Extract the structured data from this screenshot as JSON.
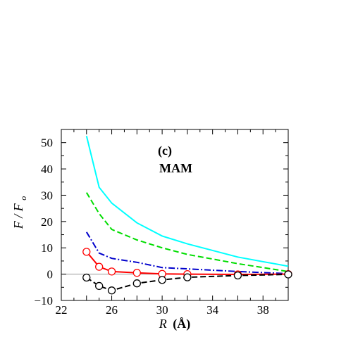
{
  "chart_data": {
    "type": "line",
    "title": "",
    "panel_label": "(c)",
    "model_label": "MAM",
    "xlabel": {
      "symbol": "R",
      "unit": "(Å)"
    },
    "ylabel": {
      "numerator": "F",
      "denominator": "F",
      "subscript": "o"
    },
    "xlim": [
      22,
      40
    ],
    "ylim": [
      -10,
      55
    ],
    "xticks": [
      22,
      26,
      30,
      34,
      38
    ],
    "yticks": [
      -10,
      0,
      10,
      20,
      30,
      40,
      50
    ],
    "xtick_labels": [
      "22",
      "26",
      "30",
      "34",
      "38"
    ],
    "ytick_labels": [
      "−10",
      "0",
      "10",
      "20",
      "30",
      "40",
      "50"
    ],
    "grid": false,
    "legend": "none",
    "zero_line": true,
    "series": [
      {
        "color": "#00ffff",
        "dash": "solid",
        "marker": "none",
        "x": [
          24,
          25,
          26,
          28,
          30,
          32,
          36,
          40
        ],
        "y": [
          52.5,
          33,
          27,
          19.5,
          14.5,
          11.5,
          6.5,
          3
        ]
      },
      {
        "color": "#00dd00",
        "dash": "dashed",
        "marker": "none",
        "x": [
          24,
          25,
          26,
          28,
          30,
          32,
          36,
          40
        ],
        "y": [
          31,
          23,
          17,
          13,
          10,
          7.5,
          4,
          1
        ]
      },
      {
        "color": "#0000cc",
        "dash": "dashdot",
        "marker": "none",
        "x": [
          24,
          25,
          26,
          28,
          30,
          32,
          36,
          40
        ],
        "y": [
          16,
          8,
          6,
          4.5,
          2.5,
          2,
          1,
          0.2
        ]
      },
      {
        "color": "#ff0000",
        "dash": "solid",
        "marker": "open-circle",
        "x": [
          24,
          25,
          26,
          28,
          30,
          32,
          36,
          40
        ],
        "y": [
          8.5,
          2.8,
          1.0,
          0.5,
          0.1,
          0.0,
          -0.1,
          0.0
        ]
      },
      {
        "color": "#000000",
        "dash": "dashed",
        "marker": "open-circle",
        "x": [
          24,
          25,
          26,
          28,
          30,
          32,
          36,
          40
        ],
        "y": [
          -1.3,
          -4.5,
          -6.2,
          -3.5,
          -2.2,
          -1.2,
          -0.5,
          -0.1
        ]
      }
    ]
  }
}
